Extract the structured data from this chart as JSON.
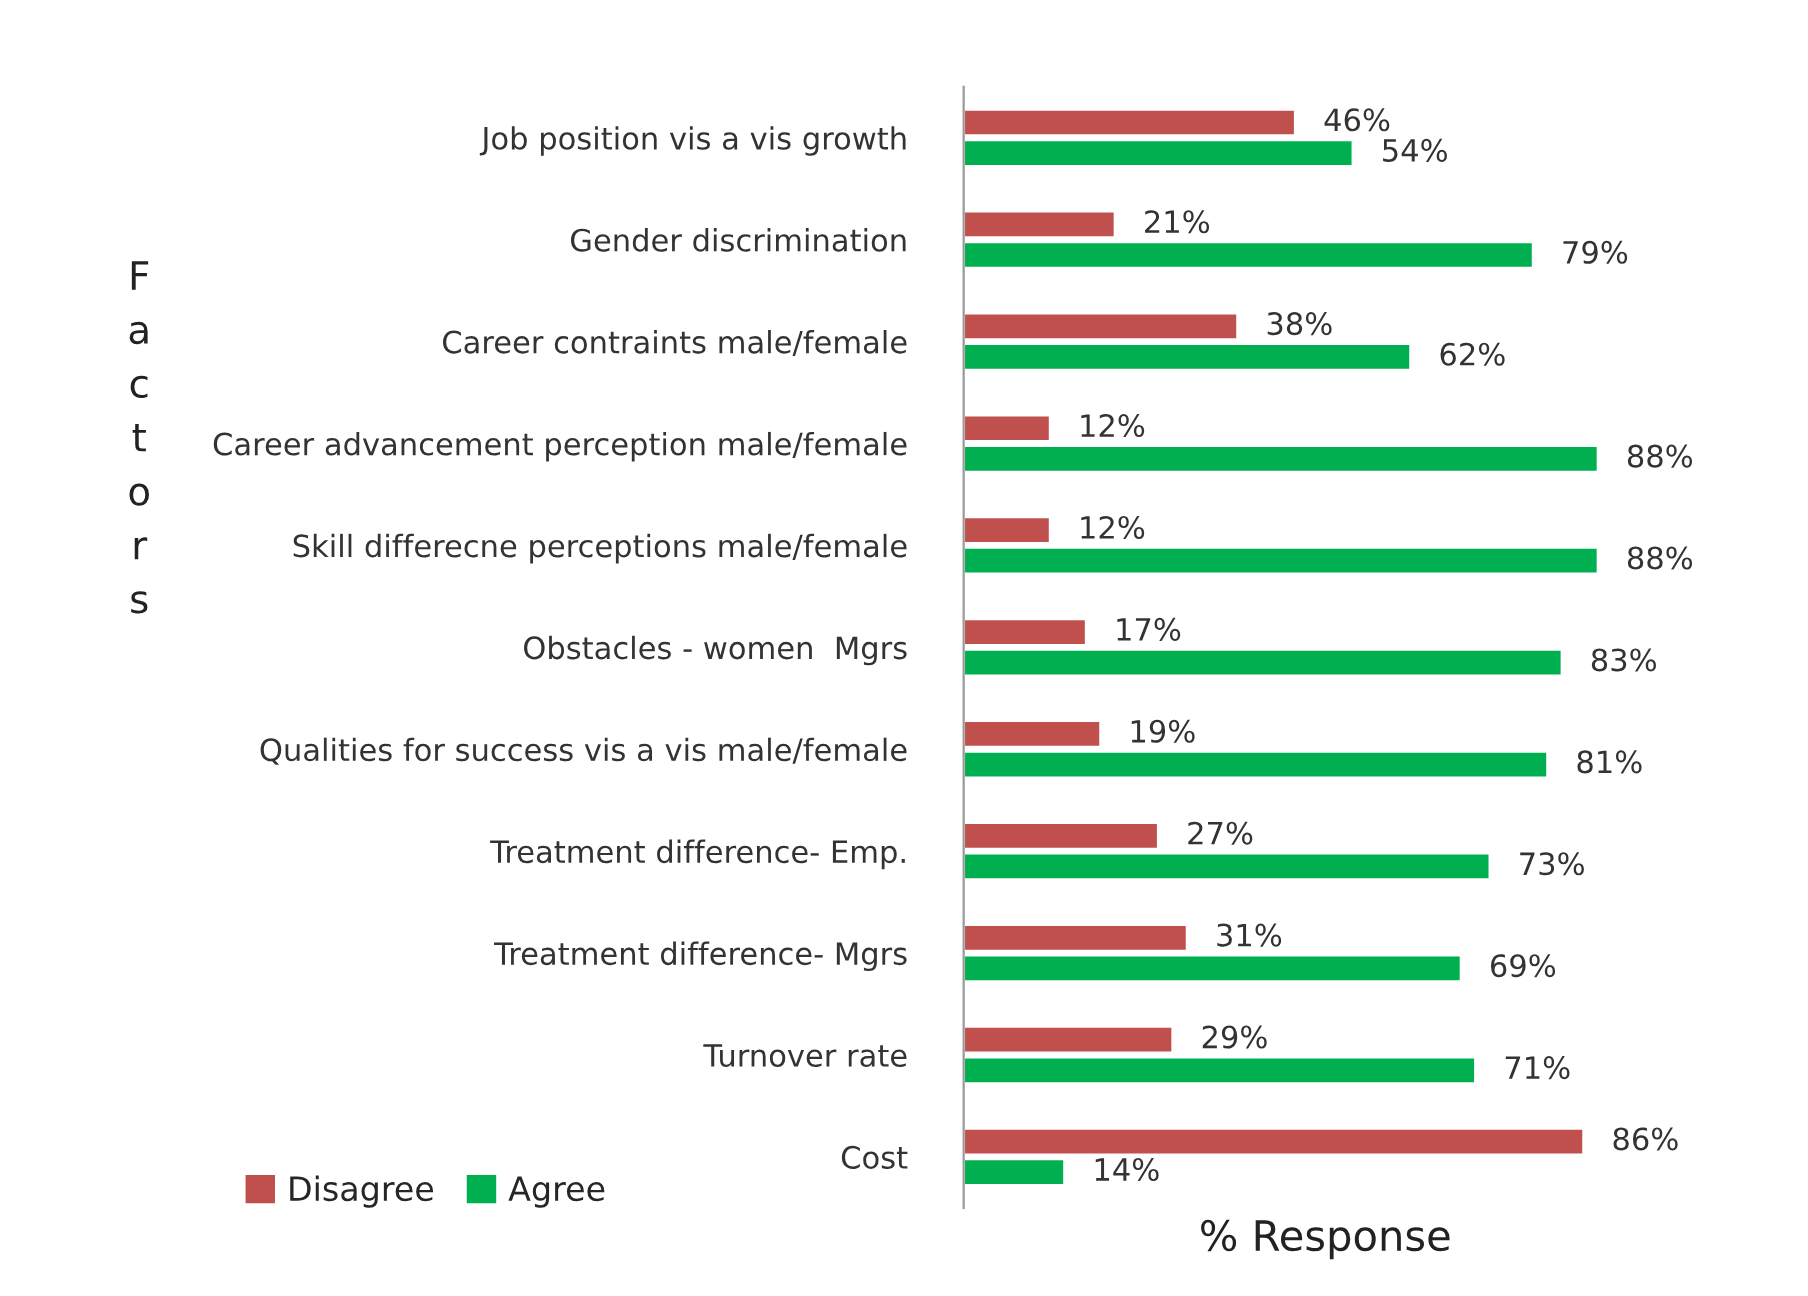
{
  "chart_data": {
    "type": "bar",
    "orientation": "horizontal",
    "xlabel": "% Response",
    "ylabel": "Factors",
    "categories": [
      "Job position vis a vis growth",
      "Gender discrimination",
      "Career contraints male/female",
      "Career advancement perception male/female",
      "Skill differecne perceptions male/female",
      "Obstacles - women  Mgrs",
      "Qualities for success vis a vis male/female",
      "Treatment difference- Emp.",
      "Treatment difference- Mgrs",
      "Turnover rate",
      "Cost"
    ],
    "series": [
      {
        "name": "Disagree",
        "color": "#c0504d",
        "values": [
          46,
          21,
          38,
          12,
          12,
          17,
          19,
          27,
          31,
          29,
          86
        ],
        "value_labels": [
          "46%",
          "21%",
          "38%",
          "12%",
          "12%",
          "17%",
          "19%",
          "27%",
          "31%",
          "29%",
          "86%"
        ]
      },
      {
        "name": "Agree",
        "color": "#00b050",
        "values": [
          54,
          79,
          62,
          88,
          88,
          83,
          81,
          73,
          69,
          71,
          14
        ],
        "value_labels": [
          "54%",
          "79%",
          "62%",
          "88%",
          "88%",
          "83%",
          "81%",
          "73%",
          "69%",
          "71%",
          "14%"
        ]
      }
    ],
    "legend": "bottom left"
  }
}
